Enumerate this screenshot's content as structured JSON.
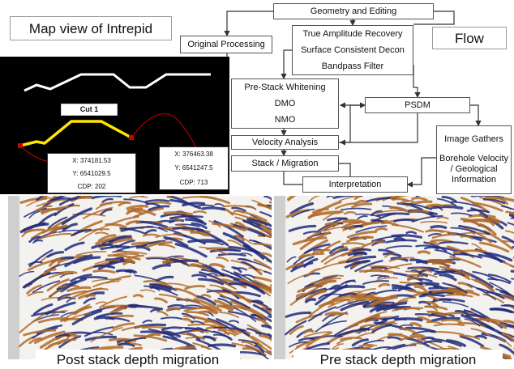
{
  "header": {
    "map_title": "Map view of Intrepid",
    "flow_title": "Flow"
  },
  "flow": {
    "nodes": [
      {
        "lines": [
          "Geometry and Editing"
        ]
      },
      {
        "lines": [
          "Original Processing"
        ]
      },
      {
        "lines": [
          "True Amplitude Recovery",
          "Surface Consistent Decon",
          "Bandpass Filter"
        ]
      },
      {
        "lines": [
          "Pre-Stack Whitening",
          "DMO",
          "NMO"
        ]
      },
      {
        "lines": [
          "Velocity Analysis"
        ]
      },
      {
        "lines": [
          "Stack / Migration"
        ]
      },
      {
        "lines": [
          "PSDM"
        ]
      },
      {
        "lines": [
          "Interpretation"
        ]
      },
      {
        "lines": [
          "Image Gathers",
          "Borehole Velocity / Geological Information"
        ]
      }
    ]
  },
  "map": {
    "cut_label": "Cut 1",
    "callouts": [
      {
        "x": "X: 374181.53",
        "y": "Y: 6541029.5",
        "cdp": "CDP: 202"
      },
      {
        "x": "X: 376463.38",
        "y": "Y: 6541247.5",
        "cdp": "CDP: 713"
      }
    ]
  },
  "panels": [
    {
      "caption": "Post stack depth migration"
    },
    {
      "caption": "Pre stack depth migration"
    }
  ]
}
